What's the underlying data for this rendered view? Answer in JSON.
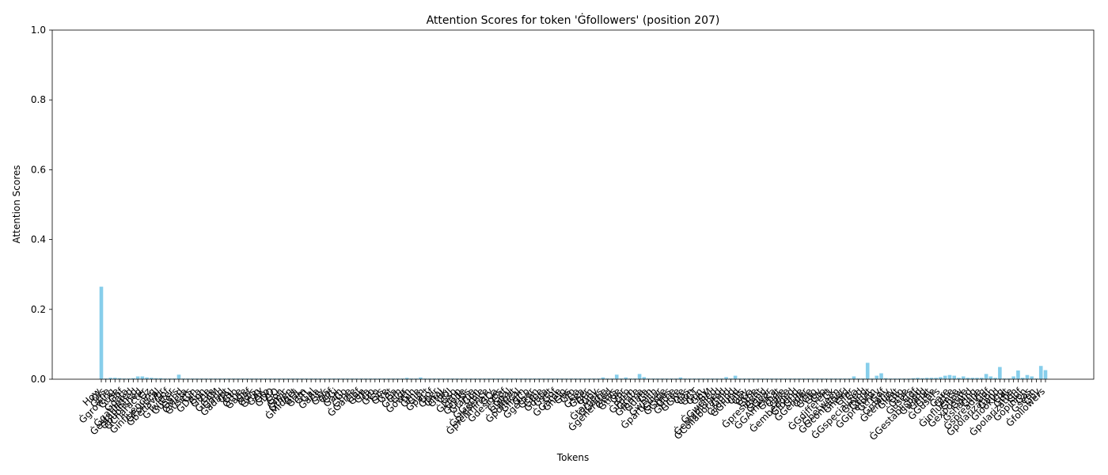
{
  "chart_data": {
    "type": "bar",
    "title": "Attention Scores for token 'Ġfollowers' (position 207)",
    "x_label": "Tokens",
    "y_label": "Attention Scores",
    "color": "#87ceeb",
    "ylim": [
      0,
      1
    ],
    "yticks": [
      {
        "value": 0,
        "label": "0.0"
      },
      0.2,
      0.4,
      0.6,
      0.8,
      {
        "value": 1,
        "label": "1.0"
      }
    ],
    "categories": [
      "How",
      "Ġis",
      "Ġthe",
      "Ġgrowing",
      "Ġuse",
      "Ġof",
      "Ġdata",
      "Ġgathered",
      "Ġestablished",
      "Ġpublished",
      "ĠCharacter",
      "Ġz",
      "Ġinfluencing",
      "ĠPolitical",
      "Ġbehavior",
      "Ġof",
      "ĠTwitter",
      "Ġusers",
      "Ġand",
      "ĠMeta",
      "Ġusers",
      "Ġin",
      "ĠData",
      "Ġon",
      "Ġthe",
      "ĠIn",
      "ĠGAM",
      "Ġand",
      "Ġadapt",
      "ĠAI",
      "Ġto",
      "Ġthe",
      "Ġage",
      "Ġof",
      "Ġdis",
      "Ġrup",
      "ĠAX",
      "Ġto",
      "ĠDO",
      "ĠO",
      "Ġon",
      "Ġmic",
      "Ġthen",
      "ĠMidget",
      "ĠHL",
      "Ġam",
      "ĠTL",
      "Ġal",
      "Ġana",
      "Ġly",
      "Ġsis",
      "Ġof",
      "ĠGi",
      "Ġam",
      "Ġo",
      "Ġthe",
      "ĠGame",
      "Ġof",
      "Ġan",
      "ĠTa",
      "Ġo",
      "ĠCo",
      "Ġis",
      "Ġve",
      "Ġat",
      "Ġa",
      "ĠGm",
      "Ġgr",
      "Ġowth",
      "Ġin",
      "Ġthe",
      "Ġim",
      "Ġpact",
      "Ġof",
      "Ġper",
      "Ġnal",
      "Ġtuk",
      "ĠUJ",
      "Ġso",
      "ĠLimp",
      "Ġede",
      "ĠCrisis",
      "Ġfame",
      "Ġon",
      "ĠGarble",
      "Ġpresence",
      "Ġpreliminary",
      "ĠCa",
      "Ġdesigns",
      "Ġof",
      "ĠGoal",
      "ĠWhat",
      "Ġpolitical",
      "Ġfram",
      "ĠCo",
      "Ġgether",
      "Ġcan",
      "Ġthe",
      "Ġdata",
      "Ġset",
      "Ġof",
      "ĠGame",
      "Ġhelp",
      "Ġus",
      "Ġto",
      "Ġa",
      "Ġsea",
      "Ġper",
      "Ġun",
      "Ġby",
      "Ġtargets",
      "ĠGame",
      "Ġgenerated",
      "Ġthis",
      "Ġtrue",
      "Ġor",
      "Ġto",
      "ĠForm",
      "Ġrate",
      "Ġforma",
      "Ġdata",
      "Ġin",
      "Ġwhich",
      "Ġparticular",
      "Ġtype",
      "ĠGives",
      "Ġthe",
      "Ġthree",
      "ĠGive",
      "Ġas",
      "Ġon",
      "ĠGT",
      "Ġon",
      "Ġby",
      "ĠM",
      "ĠGwelled",
      "Ġestablished",
      "ĠCollaborated",
      "Ġdid",
      "Ġfound",
      "ĠGfund",
      "Ġits",
      "Ġby",
      "ĠGa",
      "Ġthe",
      "Ġpresident",
      "Ġand",
      "ĠGear",
      "ĠGAmerica",
      "Ġthat",
      "Ġare",
      "Ġlike",
      "Ġembedded",
      "Ġfound",
      "Ġthe",
      "ĠGender",
      "Ġthe",
      "ĠGto",
      "Ġby",
      "Ġto",
      "ĠGdifferent",
      "Ġk",
      "Ġbetween",
      "ĠGcontainer",
      "Ġneed",
      "Ġfor",
      "Ġa",
      "ĠGspecialized",
      "Ġmind",
      "Ġthat",
      "ĠGpreform",
      "Ġthey",
      "Ġof",
      "Ġmany",
      "Ġcentury",
      "Ġlent",
      "Ġto",
      "Ġthe",
      "Ġusers",
      "Ġof",
      "ĠGestablished",
      "Ġworld",
      "Ġthat",
      "Ġthe",
      "ĠGusers",
      ",",
      "Ġare",
      "Ġthe",
      "Ġinfluence",
      "Ġhow",
      "Ġexposure",
      "Ġand",
      "Ġsharing",
      "Ġthe",
      "Ġspreading",
      "Ġof",
      "Ġpolarization",
      "Ġand",
      "Ġlooking",
      "Ġat",
      "Ġthe",
      "Ġpolarization",
      "Ġof",
      "Ġopinion",
      "Ġas",
      "Ġseen",
      "Ġby",
      "Ġfollowers"
    ],
    "values": [
      0.265,
      0.002,
      0.004,
      0.004,
      0.003,
      0.002,
      0.002,
      0.003,
      0.008,
      0.008,
      0.005,
      0.004,
      0.003,
      0.003,
      0.002,
      0.002,
      0.002,
      0.013,
      0.002,
      0.002,
      0.002,
      0.002,
      0.002,
      0.002,
      0.002,
      0.002,
      0.002,
      0.002,
      0.002,
      0.002,
      0.002,
      0.002,
      0.002,
      0.002,
      0.002,
      0.002,
      0.002,
      0.002,
      0.002,
      0.002,
      0.002,
      0.002,
      0.002,
      0.002,
      0.002,
      0.002,
      0.002,
      0.002,
      0.002,
      0.002,
      0.002,
      0.002,
      0.002,
      0.002,
      0.002,
      0.002,
      0.002,
      0.002,
      0.002,
      0.002,
      0.002,
      0.002,
      0.002,
      0.002,
      0.002,
      0.002,
      0.002,
      0.004,
      0.002,
      0.002,
      0.005,
      0.002,
      0.002,
      0.002,
      0.002,
      0.002,
      0.002,
      0.002,
      0.002,
      0.002,
      0.002,
      0.002,
      0.002,
      0.002,
      0.002,
      0.002,
      0.002,
      0.002,
      0.002,
      0.002,
      0.002,
      0.002,
      0.002,
      0.002,
      0.002,
      0.002,
      0.002,
      0.002,
      0.002,
      0.002,
      0.002,
      0.002,
      0.002,
      0.002,
      0.002,
      0.002,
      0.002,
      0.002,
      0.002,
      0.002,
      0.005,
      0.002,
      0.002,
      0.013,
      0.002,
      0.005,
      0.002,
      0.002,
      0.015,
      0.006,
      0.002,
      0.002,
      0.002,
      0.002,
      0.002,
      0.002,
      0.002,
      0.005,
      0.002,
      0.002,
      0.002,
      0.002,
      0.002,
      0.002,
      0.002,
      0.002,
      0.002,
      0.006,
      0.002,
      0.01,
      0.002,
      0.002,
      0.002,
      0.002,
      0.002,
      0.002,
      0.002,
      0.002,
      0.002,
      0.002,
      0.002,
      0.002,
      0.002,
      0.002,
      0.002,
      0.002,
      0.002,
      0.002,
      0.002,
      0.002,
      0.002,
      0.002,
      0.002,
      0.002,
      0.002,
      0.008,
      0.002,
      0.002,
      0.047,
      0.002,
      0.01,
      0.017,
      0.003,
      0.002,
      0.002,
      0.002,
      0.002,
      0.002,
      0.003,
      0.004,
      0.003,
      0.004,
      0.004,
      0.004,
      0.006,
      0.01,
      0.012,
      0.01,
      0.004,
      0.008,
      0.004,
      0.004,
      0.004,
      0.004,
      0.015,
      0.008,
      0.004,
      0.035,
      0.002,
      0.002,
      0.008,
      0.025,
      0.004,
      0.012,
      0.008,
      0.002,
      0.038,
      0.026
    ]
  }
}
